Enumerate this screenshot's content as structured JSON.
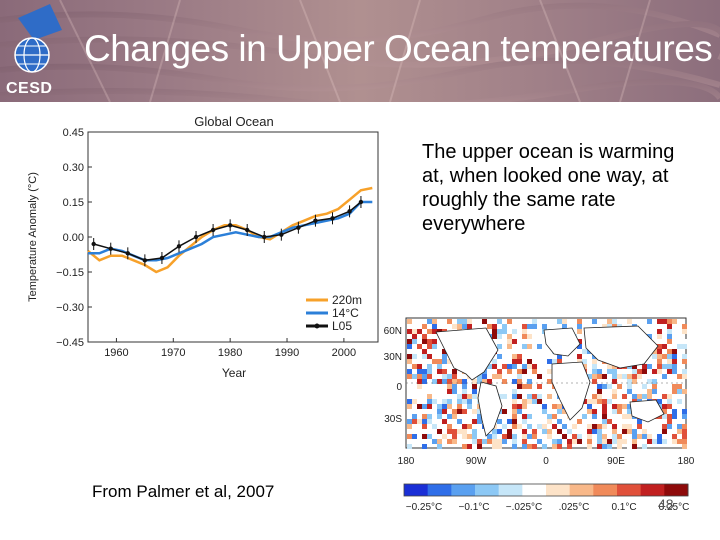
{
  "slide": {
    "title": "Changes in Upper Ocean temperatures",
    "logo_text": "CESD",
    "caption": "The upper ocean is warming at, when looked one way, at roughly the same rate everywhere",
    "source": "From Palmer et al, 2007",
    "slide_number": "48"
  },
  "chart_data": [
    {
      "type": "line",
      "title": "Global Ocean",
      "xlabel": "Year",
      "ylabel": "Temperature Anomaly (°C)",
      "xlim": [
        1955,
        2006
      ],
      "ylim": [
        -0.45,
        0.45
      ],
      "xticks": [
        "1960",
        "1970",
        "1980",
        "1990",
        "2000"
      ],
      "yticks": [
        "0.45",
        "0.30",
        "0.15",
        "0.00",
        "−0.15",
        "−0.30",
        "−0.45"
      ],
      "legend_position": "bottom-right",
      "series": [
        {
          "name": "220m",
          "color": "#f7a12a",
          "x": [
            1955,
            1957,
            1959,
            1961,
            1963,
            1965,
            1967,
            1969,
            1971,
            1973,
            1975,
            1977,
            1979,
            1981,
            1983,
            1985,
            1987,
            1989,
            1991,
            1993,
            1995,
            1997,
            1999,
            2001,
            2003,
            2005
          ],
          "values": [
            -0.06,
            -0.1,
            -0.08,
            -0.08,
            -0.1,
            -0.12,
            -0.15,
            -0.13,
            -0.08,
            -0.04,
            0.0,
            0.03,
            0.05,
            0.05,
            0.03,
            0.0,
            -0.01,
            0.02,
            0.05,
            0.07,
            0.09,
            0.1,
            0.12,
            0.16,
            0.2,
            0.21
          ]
        },
        {
          "name": "14°C",
          "color": "#2b7fd8",
          "x": [
            1955,
            1957,
            1959,
            1961,
            1963,
            1965,
            1967,
            1969,
            1971,
            1973,
            1975,
            1977,
            1979,
            1981,
            1983,
            1985,
            1987,
            1989,
            1991,
            1993,
            1995,
            1997,
            1999,
            2001,
            2003,
            2005
          ],
          "values": [
            -0.07,
            -0.07,
            -0.05,
            -0.06,
            -0.08,
            -0.1,
            -0.1,
            -0.09,
            -0.07,
            -0.05,
            -0.03,
            0.0,
            0.01,
            0.02,
            0.01,
            0.0,
            0.0,
            0.02,
            0.04,
            0.05,
            0.06,
            0.07,
            0.08,
            0.1,
            0.15,
            0.15
          ]
        },
        {
          "name": "L05",
          "color": "#111111",
          "x": [
            1956,
            1959,
            1962,
            1965,
            1968,
            1971,
            1974,
            1977,
            1980,
            1983,
            1986,
            1989,
            1992,
            1995,
            1998,
            2001,
            2003
          ],
          "values": [
            -0.03,
            -0.05,
            -0.07,
            -0.1,
            -0.09,
            -0.04,
            0.0,
            0.03,
            0.05,
            0.03,
            0.0,
            0.01,
            0.04,
            0.07,
            0.08,
            0.11,
            0.15
          ]
        }
      ]
    },
    {
      "type": "heatmap",
      "ylabels": [
        "60N",
        "30N",
        "0",
        "30S"
      ],
      "xlabels": [
        "180",
        "90W",
        "0",
        "90E",
        "180"
      ],
      "colorbar_labels": [
        "−0.25°C",
        "−0.1°C",
        "−.025°C",
        ".025°C",
        "0.1°C",
        "0.25°C"
      ],
      "colorbar_colors": [
        "#1a2fd6",
        "#2f6ee8",
        "#5aa0f0",
        "#8cc8f5",
        "#c6e6f8",
        "#ffffff",
        "#fde3c8",
        "#f8b889",
        "#f08a5a",
        "#e0503a",
        "#c12020",
        "#8e0a0a"
      ]
    }
  ]
}
